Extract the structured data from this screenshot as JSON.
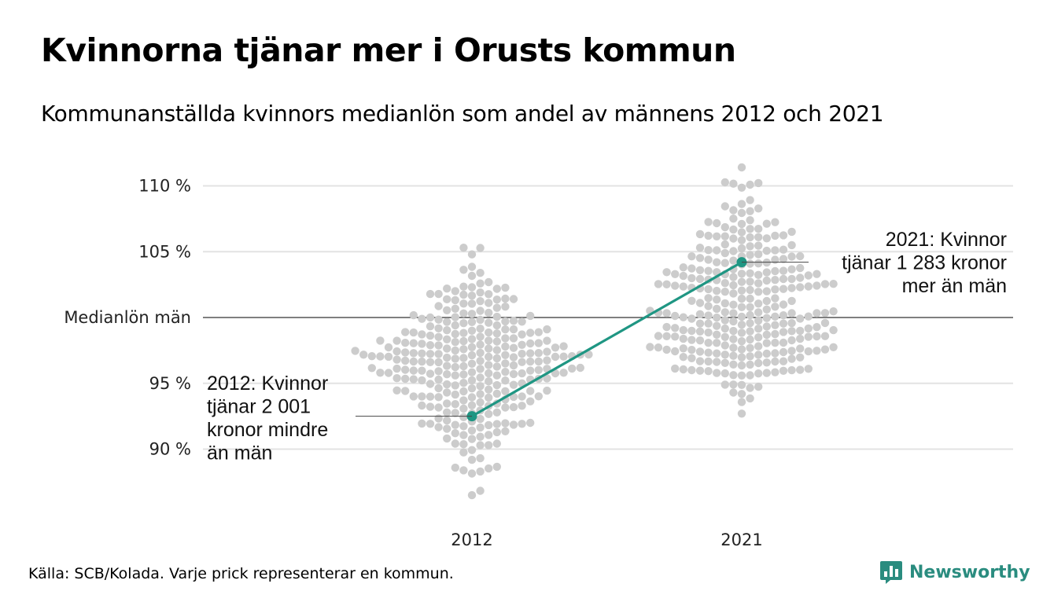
{
  "header": {
    "title": "Kvinnorna tjänar mer i Orusts kommun",
    "subtitle": "Kommunanställda kvinnors medianlön som andel av männens 2012 och 2021"
  },
  "footer": {
    "source": "Källa: SCB/Kolada. Varje prick representerar en kommun.",
    "brand": "Newsworthy"
  },
  "colors": {
    "dots": "#cccccc",
    "highlight": "#1f9683",
    "reference_line": "#333333",
    "grid": "#e3e3e3",
    "brand": "#2a8c7f"
  },
  "icons": {
    "brand_logo": "bar-chart-speech-bubble-icon"
  },
  "chart_data": {
    "type": "scatter",
    "x": [
      "2012",
      "2021"
    ],
    "y_unit": "%",
    "ylim": [
      86,
      112
    ],
    "y_ticks": [
      {
        "value": 90,
        "label": "90 %"
      },
      {
        "value": 95,
        "label": "95 %"
      },
      {
        "value": 100,
        "label": "Medianlön män"
      },
      {
        "value": 105,
        "label": "105 %"
      },
      {
        "value": 110,
        "label": "110 %"
      }
    ],
    "reference_line": {
      "value": 100,
      "label": "Medianlön män"
    },
    "grid": true,
    "distributions": [
      {
        "x": "2012",
        "median": 96.5,
        "min": 86.5,
        "max": 105.3,
        "count": 290
      },
      {
        "x": "2021",
        "median": 100.5,
        "min": 92.7,
        "max": 111.4,
        "count": 290
      }
    ],
    "highlight_series": {
      "points": [
        {
          "x": "2012",
          "y": 92.5
        },
        {
          "x": "2021",
          "y": 104.2
        }
      ]
    },
    "annotations": [
      {
        "x": "2012",
        "lines": [
          "2012: Kvinnor",
          "tjänar 2 001",
          "kronor mindre",
          "än män"
        ]
      },
      {
        "x": "2021",
        "lines": [
          "2021: Kvinnor",
          "tjänar 1 283 kronor",
          "mer än män"
        ]
      }
    ]
  }
}
